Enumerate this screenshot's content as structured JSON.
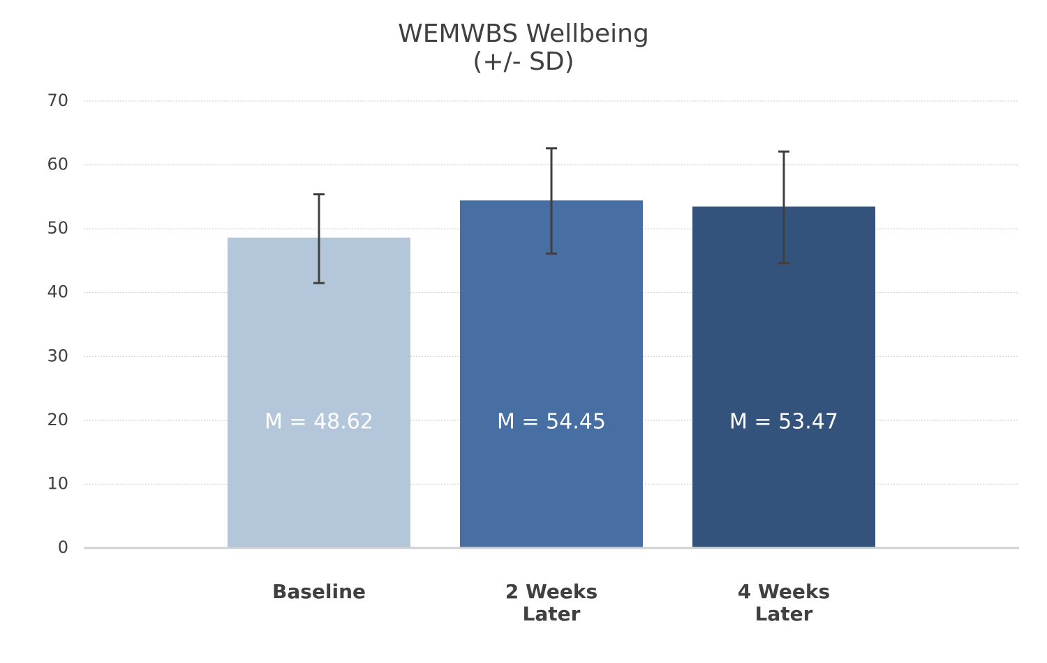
{
  "chart_data": {
    "type": "bar",
    "title_lines": [
      "WEMWBS Wellbeing",
      "(+/- SD)"
    ],
    "categories": [
      [
        "Baseline"
      ],
      [
        "2 Weeks",
        "Later"
      ],
      [
        "4 Weeks",
        "Later"
      ]
    ],
    "values": [
      48.62,
      54.45,
      53.47
    ],
    "error_bars": [
      {
        "low": 41.5,
        "high": 55.4
      },
      {
        "low": 46.1,
        "high": 62.6
      },
      {
        "low": 44.6,
        "high": 62.1
      }
    ],
    "data_labels": [
      "M = 48.62",
      "M = 54.45",
      "M = 53.47"
    ],
    "bar_colors": [
      "#b4c6da",
      "#476fa3",
      "#34537c"
    ],
    "error_bar_color": "#3f3f3f",
    "ylim": [
      0,
      70
    ],
    "yticks": [
      0,
      10,
      20,
      30,
      40,
      50,
      60,
      70
    ],
    "grid": true,
    "xlabel": "",
    "ylabel": ""
  }
}
